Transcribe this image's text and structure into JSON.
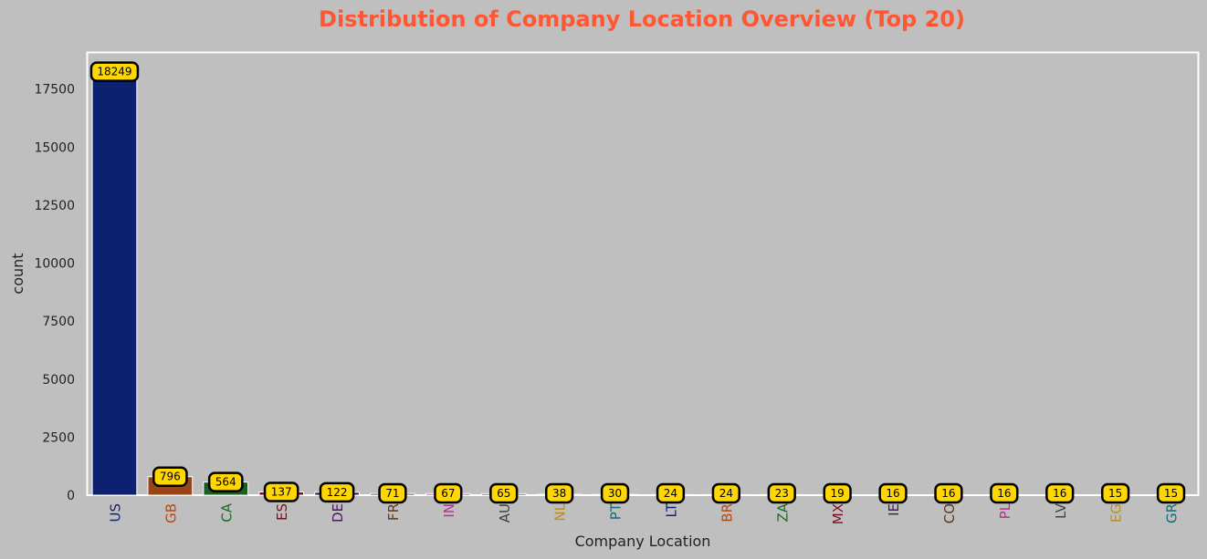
{
  "chart_data": {
    "type": "bar",
    "title": "Distribution of Company Location Overview (Top 20)",
    "xlabel": "Company Location",
    "ylabel": "count",
    "categories": [
      "US",
      "GB",
      "CA",
      "ES",
      "DE",
      "FR",
      "IN",
      "AU",
      "NL",
      "PT",
      "LT",
      "BR",
      "ZA",
      "MX",
      "IE",
      "CO",
      "PL",
      "LV",
      "EG",
      "GR"
    ],
    "values": [
      18249,
      796,
      564,
      137,
      122,
      71,
      67,
      65,
      38,
      30,
      24,
      24,
      23,
      19,
      16,
      16,
      16,
      16,
      15,
      15
    ],
    "ylim": [
      0,
      19100
    ],
    "yticks": [
      0,
      2500,
      5000,
      7500,
      10000,
      12500,
      15000,
      17500
    ],
    "ytick_labels": [
      "0",
      "2500",
      "5000",
      "7500",
      "10000",
      "12500",
      "15000",
      "17500"
    ],
    "bar_colors": [
      "#0c2170",
      "#9b4417",
      "#1a5e22",
      "#7a0f1f",
      "#3d1456",
      "#55381c",
      "#a33c8a",
      "#404040",
      "#a88418",
      "#15606e"
    ],
    "tick_label_colors": [
      "#0c2170",
      "#b34a13",
      "#1a6b24",
      "#7a0f1f",
      "#4a1663",
      "#5a3a1c",
      "#b0338f",
      "#404040",
      "#b8901a",
      "#156a78"
    ],
    "label_box_color": "#ffd700",
    "title_color": "#ff5733",
    "background": "#bfbfbf",
    "grid": false,
    "legend": "none"
  }
}
